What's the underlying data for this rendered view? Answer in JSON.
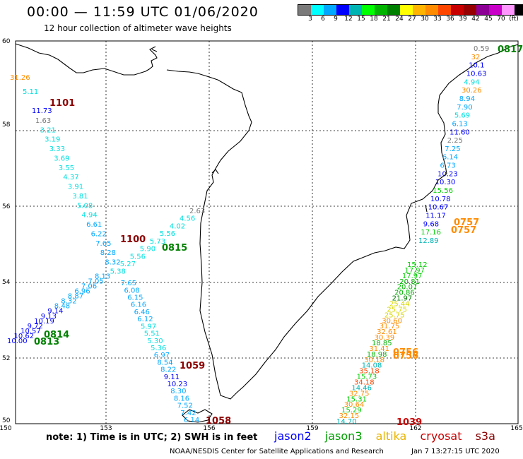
{
  "header": {
    "title": "00:00 — 11:59 UTC 01/06/2020",
    "subtitle": "12 hour collection of altimeter wave heights"
  },
  "legend": {
    "colors": [
      "#7a7a7a",
      "#00ffff",
      "#00a8ff",
      "#0000ff",
      "#00b4b4",
      "#00ff00",
      "#00b400",
      "#008000",
      "#ffff00",
      "#ffb400",
      "#ff8c00",
      "#ff4600",
      "#c80000",
      "#960000",
      "#8c0096",
      "#c800c8",
      "#ff96ff",
      "#000000"
    ],
    "labels": [
      "3",
      "6",
      "9",
      "12",
      "15",
      "18",
      "21",
      "24",
      "27",
      "30",
      "33",
      "36",
      "39",
      "42",
      "45",
      "70",
      "(ft)"
    ]
  },
  "axes": {
    "lat_labels": [
      "60",
      "58",
      "56",
      "54",
      "52",
      "50"
    ],
    "lon_labels": [
      "150",
      "153",
      "156",
      "159",
      "162",
      "165"
    ]
  },
  "time_labels": [
    {
      "text": "1101",
      "color": "#8b0000"
    },
    {
      "text": "1100",
      "color": "#8b0000"
    },
    {
      "text": "0815",
      "color": "#008000"
    },
    {
      "text": "0814",
      "color": "#008000"
    },
    {
      "text": "0813",
      "color": "#008000"
    },
    {
      "text": "1059",
      "color": "#8b0000"
    },
    {
      "text": "1058",
      "color": "#8b0000"
    },
    {
      "text": "0817",
      "color": "#008000"
    },
    {
      "text": "0757",
      "color": "#ff8c00"
    },
    {
      "text": "0757",
      "color": "#ff8c00"
    },
    {
      "text": "0756",
      "color": "#ff8c00"
    },
    {
      "text": "0756",
      "color": "#ff8c00"
    },
    {
      "text": "1039",
      "color": "#c80000"
    }
  ],
  "track_a": [
    "31.26",
    "5.11",
    "11.73",
    "1.63",
    "3.21",
    "3.19",
    "3.33",
    "3.69",
    "3.55",
    "4.37",
    "3.91",
    "3.81",
    "5.08",
    "4.94",
    "6.61",
    "6.22",
    "7.65",
    "8.28",
    "8.32",
    "8.13",
    "7.05",
    "7.06",
    "6.96",
    "8.87",
    "8.32",
    "8.48",
    "9.14",
    "9.13",
    "10.19",
    "9.72",
    "10.57",
    "10.62",
    "10.00"
  ],
  "track_b": [
    "2.63",
    "4.56",
    "4.02",
    "5.56",
    "5.73",
    "5.90",
    "5.56",
    "5.27",
    "5.38",
    "7.65",
    "6.08",
    "6.15",
    "6.16",
    "6.46",
    "6.12",
    "5.97",
    "5.51",
    "5.30",
    "5.36",
    "6.97",
    "8.54",
    "8.22",
    "9.11",
    "10.23",
    "8.30",
    "8.16",
    "7.52",
    "7.42",
    "6.14"
  ],
  "track_c": [
    "0.59",
    "32",
    "10.1",
    "10.63",
    "4.94",
    "30.26",
    "8.94",
    "7.90",
    "5.69",
    "6.13",
    "11.60",
    "2.25",
    "7.25",
    "6.14",
    "6.73",
    "10.23",
    "10.30",
    "15.56",
    "10.78",
    "10.67",
    "11.17",
    "9.68",
    "17.16",
    "12.89"
  ],
  "track_d": [
    "15.12",
    "17.97",
    "17.97",
    "20.81",
    "20.07",
    "20.86",
    "21.97",
    "25.44",
    "25.75",
    "25.75",
    "30.60",
    "31.75",
    "32.61",
    "30.39",
    "18.85",
    "31.41",
    "18.98",
    "30.18",
    "14.08",
    "35.18",
    "15.73",
    "34.18",
    "14.46",
    "32.75",
    "15.31",
    "30.64",
    "15.29",
    "32.15",
    "14.70"
  ],
  "footer": {
    "note": "note: 1) Time is in UTC; 2) SWH is in feet",
    "sats": [
      {
        "name": "jason2",
        "color": "#0000ff"
      },
      {
        "name": "jason3",
        "color": "#00a000"
      },
      {
        "name": "altika",
        "color": "#e8b400"
      },
      {
        "name": "cryosat",
        "color": "#c80000"
      },
      {
        "name": "s3a",
        "color": "#8b0000"
      }
    ],
    "credit": "NOAA/NESDIS Center for Satellite Applications and Research",
    "date": "Jan  7 13:27:15 UTC 2020"
  }
}
